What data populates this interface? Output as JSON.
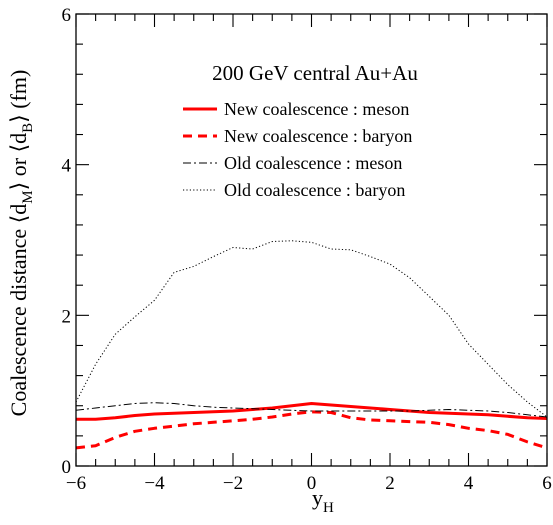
{
  "chart_data": {
    "type": "line",
    "annotation": "200 GeV central Au+Au",
    "xlabel": {
      "main": "y",
      "sub": "H"
    },
    "ylabel": {
      "pre": "Coalescence distance ⟨d",
      "sub1": "M",
      "mid": "⟩ or ⟨d",
      "sub2": "B",
      "post": "⟩ (fm)"
    },
    "xlim": [
      -6,
      6
    ],
    "ylim": [
      0,
      6
    ],
    "x_ticks": [
      -6,
      -4,
      -2,
      0,
      2,
      4,
      6
    ],
    "x_tick_labels": [
      "−6",
      "−4",
      "−2",
      "0",
      "2",
      "4",
      "6"
    ],
    "y_ticks": [
      0,
      2,
      4,
      6
    ],
    "y_tick_labels": [
      "0",
      "2",
      "4",
      "6"
    ],
    "grid": false,
    "legend_position": "top-right",
    "series": [
      {
        "name": "New coalescence : meson",
        "style": "solid-thick",
        "color": "#ff0000",
        "x": [
          -6,
          -5.5,
          -5,
          -4.5,
          -4,
          -3.5,
          -3,
          -2.5,
          -2,
          -1.5,
          -1,
          -0.5,
          0,
          0.5,
          1,
          1.5,
          2,
          2.5,
          3,
          3.5,
          4,
          4.5,
          5,
          5.5,
          6
        ],
        "y": [
          0.62,
          0.62,
          0.64,
          0.67,
          0.69,
          0.7,
          0.71,
          0.72,
          0.73,
          0.75,
          0.77,
          0.8,
          0.83,
          0.81,
          0.79,
          0.77,
          0.75,
          0.73,
          0.71,
          0.7,
          0.69,
          0.68,
          0.66,
          0.64,
          0.63
        ]
      },
      {
        "name": "New coalescence : baryon",
        "style": "dashed-thick",
        "color": "#ff0000",
        "x": [
          -6,
          -5.5,
          -5,
          -4.5,
          -4,
          -3.5,
          -3,
          -2.5,
          -2,
          -1.5,
          -1,
          -0.5,
          0,
          0.5,
          1,
          1.5,
          2,
          2.5,
          3,
          3.5,
          4,
          4.5,
          5,
          5.5,
          6
        ],
        "y": [
          0.24,
          0.27,
          0.38,
          0.46,
          0.5,
          0.53,
          0.56,
          0.58,
          0.6,
          0.62,
          0.65,
          0.69,
          0.72,
          0.71,
          0.64,
          0.61,
          0.6,
          0.59,
          0.58,
          0.55,
          0.5,
          0.47,
          0.42,
          0.32,
          0.24
        ]
      },
      {
        "name": "Old coalescence : meson",
        "style": "dashdot-thin",
        "color": "#000000",
        "x": [
          -6,
          -5.5,
          -5,
          -4.5,
          -4,
          -3.5,
          -3,
          -2.5,
          -2,
          -1.5,
          -1,
          -0.5,
          0,
          0.5,
          1,
          1.5,
          2,
          2.5,
          3,
          3.5,
          4,
          4.5,
          5,
          5.5,
          6
        ],
        "y": [
          0.74,
          0.77,
          0.8,
          0.83,
          0.84,
          0.83,
          0.8,
          0.78,
          0.77,
          0.76,
          0.75,
          0.74,
          0.73,
          0.73,
          0.73,
          0.73,
          0.73,
          0.73,
          0.74,
          0.75,
          0.74,
          0.73,
          0.71,
          0.68,
          0.65
        ]
      },
      {
        "name": "Old coalescence : baryon",
        "style": "dotted-thin",
        "color": "#000000",
        "x": [
          -6,
          -5.5,
          -5,
          -4.5,
          -4,
          -3.5,
          -3,
          -2.5,
          -2,
          -1.5,
          -1,
          -0.5,
          0,
          0.5,
          1,
          1.5,
          2,
          2.5,
          3,
          3.5,
          4,
          4.5,
          5,
          5.5,
          6
        ],
        "y": [
          0.85,
          1.35,
          1.75,
          1.98,
          2.2,
          2.57,
          2.65,
          2.78,
          2.9,
          2.88,
          2.98,
          2.99,
          2.97,
          2.88,
          2.87,
          2.78,
          2.68,
          2.5,
          2.25,
          2.0,
          1.62,
          1.35,
          1.08,
          0.85,
          0.65
        ]
      }
    ]
  }
}
